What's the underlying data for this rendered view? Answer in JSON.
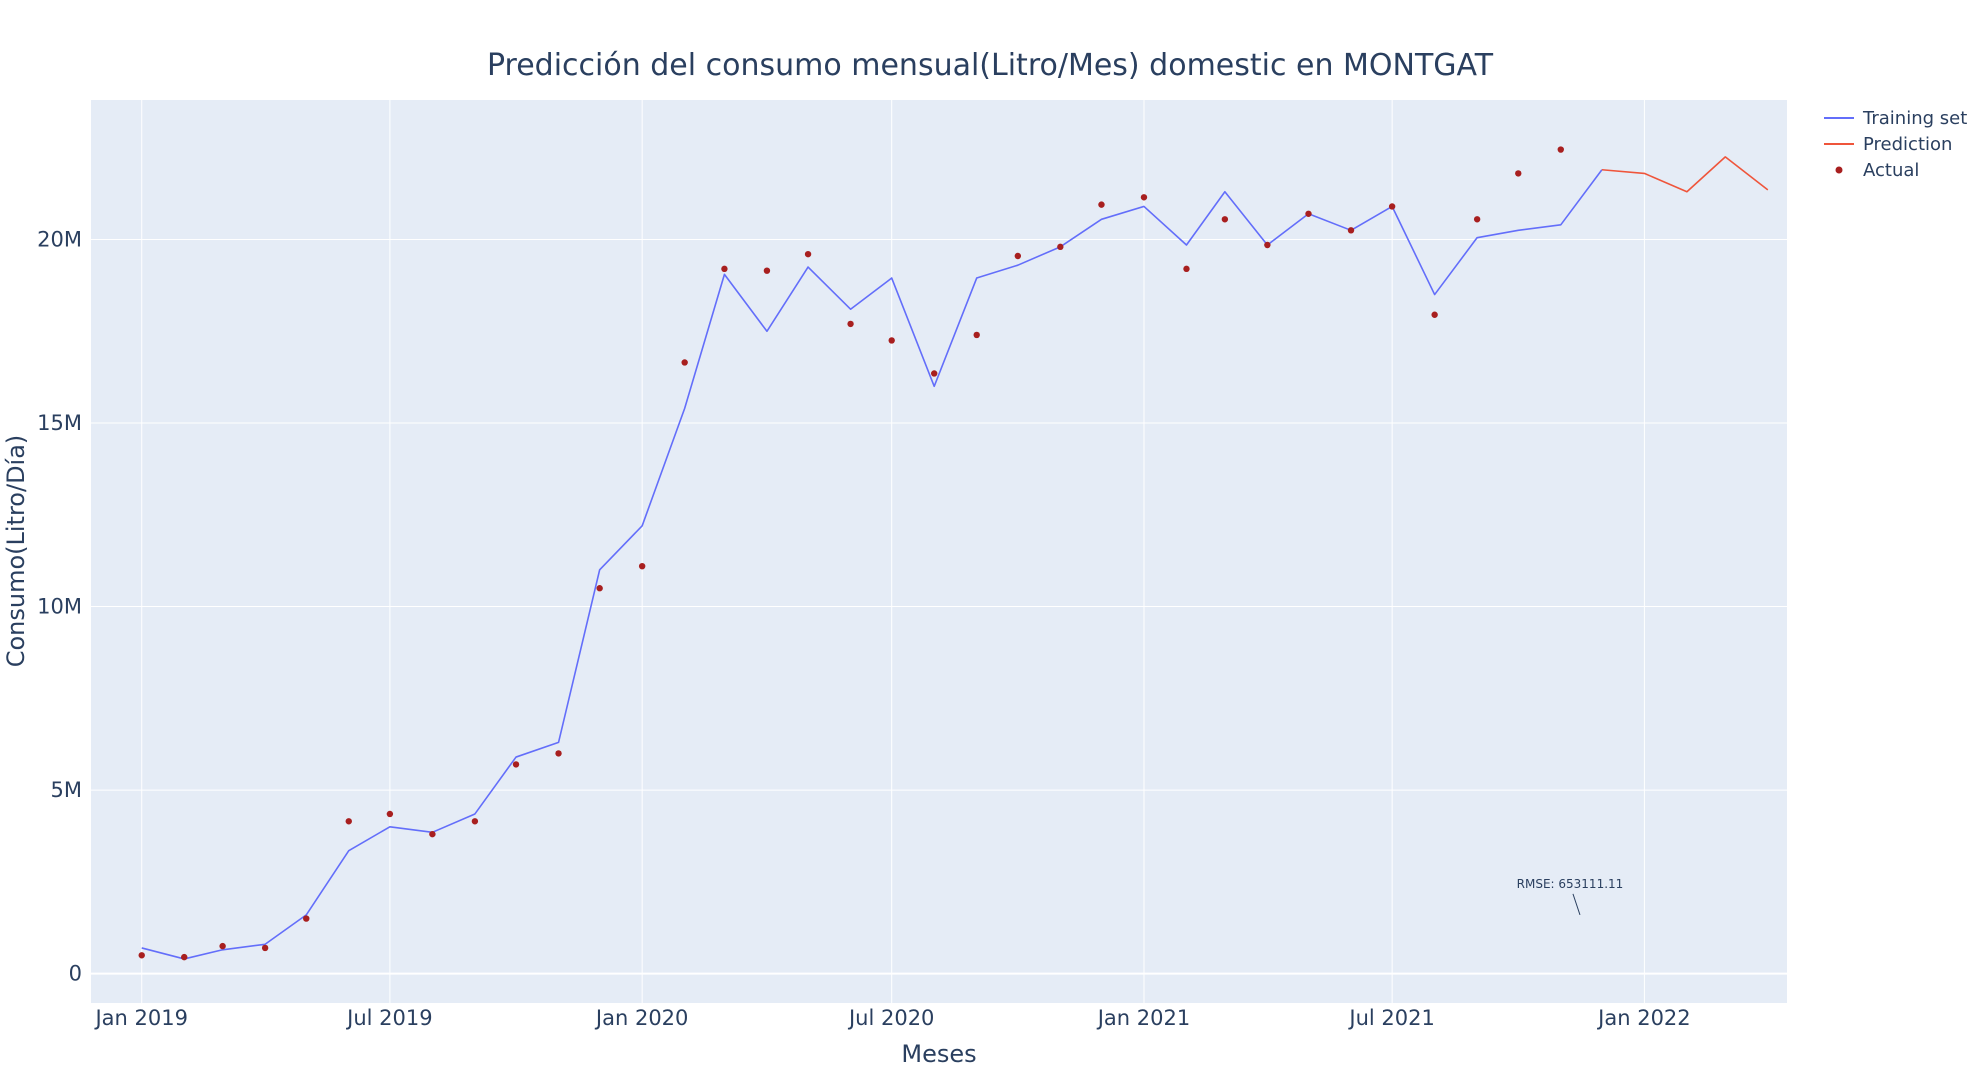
{
  "chart_data": {
    "type": "line",
    "title": "Predicción del consumo mensual(Litro/Mes) domestic en MONTGAT",
    "xlabel": "Meses",
    "ylabel": "Consumo(Litro/Día)",
    "xlim": [
      "2018-11-25",
      "2022-04-15"
    ],
    "ylim": [
      -800000,
      23800000
    ],
    "xticks": [
      {
        "date": "2019-01-01",
        "label": "Jan 2019"
      },
      {
        "date": "2019-07-01",
        "label": "Jul 2019"
      },
      {
        "date": "2020-01-01",
        "label": "Jan 2020"
      },
      {
        "date": "2020-07-01",
        "label": "Jul 2020"
      },
      {
        "date": "2021-01-01",
        "label": "Jan 2021"
      },
      {
        "date": "2021-07-01",
        "label": "Jul 2021"
      },
      {
        "date": "2022-01-01",
        "label": "Jan 2022"
      }
    ],
    "yticks": [
      {
        "value": 0,
        "label": "0"
      },
      {
        "value": 5000000,
        "label": "5M"
      },
      {
        "value": 10000000,
        "label": "10M"
      },
      {
        "value": 15000000,
        "label": "15M"
      },
      {
        "value": 20000000,
        "label": "20M"
      }
    ],
    "grid": true,
    "legend_position": "top-right",
    "plot_bgcolor": "#e5ecf6",
    "series": [
      {
        "name": "Training set",
        "mode": "line",
        "color": "#636efa",
        "x": [
          "2019-01-01",
          "2019-02-01",
          "2019-03-01",
          "2019-04-01",
          "2019-05-01",
          "2019-06-01",
          "2019-07-01",
          "2019-08-01",
          "2019-09-01",
          "2019-10-01",
          "2019-11-01",
          "2019-12-01",
          "2020-01-01",
          "2020-02-01",
          "2020-03-01",
          "2020-04-01",
          "2020-05-01",
          "2020-06-01",
          "2020-07-01",
          "2020-08-01",
          "2020-09-01",
          "2020-10-01",
          "2020-11-01",
          "2020-12-01",
          "2021-01-01",
          "2021-02-01",
          "2021-03-01",
          "2021-04-01",
          "2021-05-01",
          "2021-06-01",
          "2021-07-01",
          "2021-08-01",
          "2021-09-01",
          "2021-10-01",
          "2021-11-01",
          "2021-12-01"
        ],
        "y": [
          700000,
          400000,
          650000,
          800000,
          1600000,
          3350000,
          4000000,
          3850000,
          4350000,
          5900000,
          6300000,
          11000000,
          12200000,
          15400000,
          19050000,
          17500000,
          19250000,
          18100000,
          18950000,
          16000000,
          18950000,
          19300000,
          19800000,
          20550000,
          20900000,
          19850000,
          21300000,
          19850000,
          20700000,
          20250000,
          20900000,
          18500000,
          20050000,
          20250000,
          20400000,
          21900000
        ]
      },
      {
        "name": "Prediction",
        "mode": "line",
        "color": "#ef553b",
        "x": [
          "2021-12-01",
          "2022-01-01",
          "2022-02-01",
          "2022-03-01",
          "2022-04-01"
        ],
        "y": [
          21900000,
          21800000,
          21300000,
          22250000,
          21350000
        ]
      },
      {
        "name": "Actual",
        "mode": "markers",
        "color": "#a81f1f",
        "x": [
          "2019-01-01",
          "2019-02-01",
          "2019-03-01",
          "2019-04-01",
          "2019-05-01",
          "2019-06-01",
          "2019-07-01",
          "2019-08-01",
          "2019-09-01",
          "2019-10-01",
          "2019-11-01",
          "2019-12-01",
          "2020-01-01",
          "2020-02-01",
          "2020-03-01",
          "2020-04-01",
          "2020-05-01",
          "2020-06-01",
          "2020-07-01",
          "2020-08-01",
          "2020-09-01",
          "2020-10-01",
          "2020-11-01",
          "2020-12-01",
          "2021-01-01",
          "2021-02-01",
          "2021-03-01",
          "2021-04-01",
          "2021-05-01",
          "2021-06-01",
          "2021-07-01",
          "2021-08-01",
          "2021-09-01",
          "2021-10-01",
          "2021-11-01"
        ],
        "y": [
          500000,
          450000,
          750000,
          700000,
          1500000,
          4150000,
          4350000,
          3800000,
          4150000,
          5700000,
          6000000,
          10500000,
          11100000,
          16650000,
          19200000,
          19150000,
          19600000,
          17700000,
          17250000,
          16350000,
          17400000,
          19550000,
          19800000,
          20950000,
          21150000,
          19200000,
          20550000,
          19850000,
          20700000,
          20250000,
          20900000,
          17950000,
          20550000,
          21800000,
          22450000
        ]
      }
    ],
    "annotations": [
      {
        "text": "RMSE: 653111.11",
        "x": "2021-11-15",
        "y": 1600000
      }
    ]
  }
}
